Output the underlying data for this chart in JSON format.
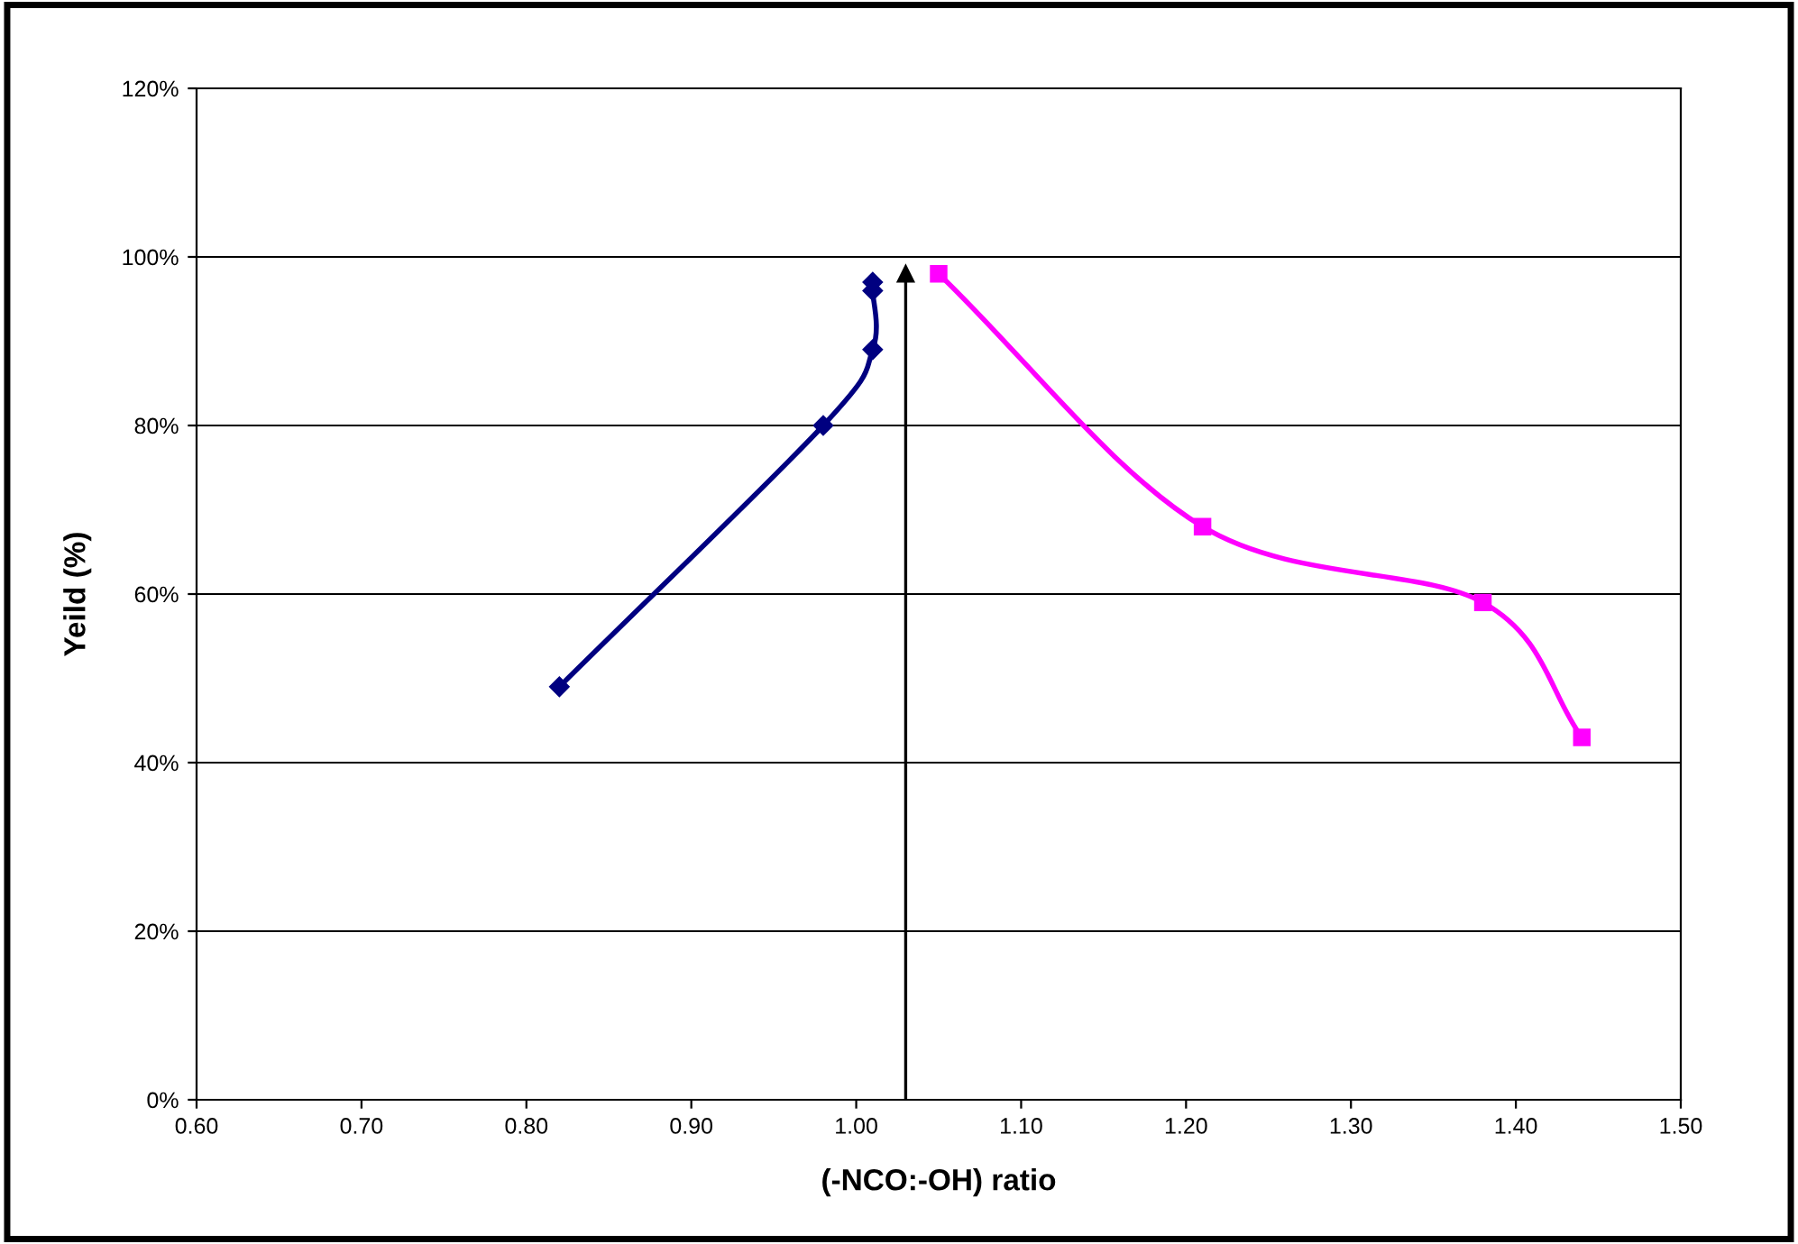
{
  "chart_data": {
    "type": "line",
    "xlabel": "(-NCO:-OH) ratio",
    "ylabel": "Yeild (%)",
    "xlim": [
      0.6,
      1.5
    ],
    "xticks": [
      {
        "value": 0.6,
        "label": "0.60"
      },
      {
        "value": 0.7,
        "label": "0.70"
      },
      {
        "value": 0.8,
        "label": "0.80"
      },
      {
        "value": 0.9,
        "label": "0.90"
      },
      {
        "value": 1.0,
        "label": "1.00"
      },
      {
        "value": 1.1,
        "label": "1.10"
      },
      {
        "value": 1.2,
        "label": "1.20"
      },
      {
        "value": 1.3,
        "label": "1.30"
      },
      {
        "value": 1.4,
        "label": "1.40"
      },
      {
        "value": 1.5,
        "label": "1.50"
      }
    ],
    "ylim": [
      0,
      120
    ],
    "yticks": [
      {
        "value": 0,
        "label": "0%"
      },
      {
        "value": 20,
        "label": "20%"
      },
      {
        "value": 40,
        "label": "40%"
      },
      {
        "value": 60,
        "label": "60%"
      },
      {
        "value": 80,
        "label": "80%"
      },
      {
        "value": 100,
        "label": "100%"
      },
      {
        "value": 120,
        "label": "120%"
      }
    ],
    "grid": "y",
    "legend": false,
    "series": [
      {
        "color": "#000080",
        "marker": "diamond",
        "x": [
          0.82,
          0.98,
          1.01,
          1.01,
          1.01
        ],
        "values": [
          49,
          80,
          89,
          96,
          97
        ]
      },
      {
        "color": "#ff00ff",
        "marker": "square",
        "x": [
          1.05,
          1.21,
          1.38,
          1.44
        ],
        "values": [
          98,
          68,
          59,
          43
        ]
      }
    ],
    "ref_lines": [
      {
        "axis": "x",
        "value": 1.03,
        "color": "#000000"
      }
    ]
  }
}
